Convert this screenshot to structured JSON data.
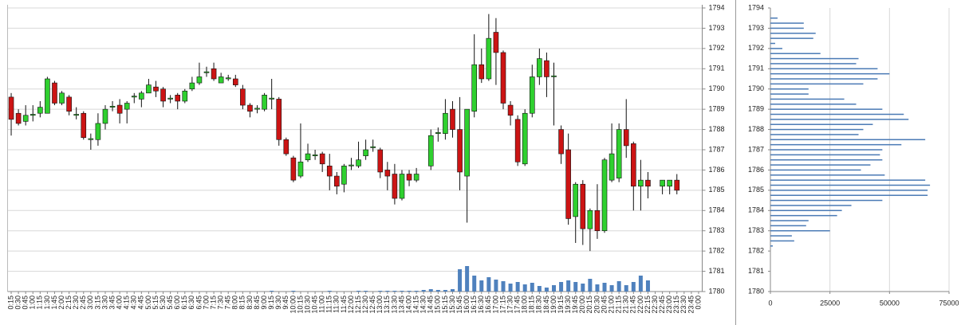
{
  "chart_data": [
    {
      "type": "candlestick",
      "categories": [
        "0:15",
        "0:30",
        "0:45",
        "1:00",
        "1:15",
        "1:30",
        "1:45",
        "2:00",
        "2:15",
        "2:30",
        "2:45",
        "3:00",
        "3:15",
        "3:30",
        "3:45",
        "4:00",
        "4:15",
        "4:30",
        "4:45",
        "5:00",
        "5:15",
        "5:30",
        "5:45",
        "6:00",
        "6:15",
        "6:30",
        "6:45",
        "7:00",
        "7:15",
        "7:30",
        "7:45",
        "8:00",
        "8:15",
        "8:30",
        "8:45",
        "9:00",
        "9:15",
        "9:30",
        "9:45",
        "10:00",
        "10:15",
        "10:30",
        "10:45",
        "11:00",
        "11:15",
        "11:30",
        "11:45",
        "12:00",
        "12:15",
        "12:30",
        "12:45",
        "13:00",
        "13:15",
        "13:30",
        "13:45",
        "14:00",
        "14:15",
        "14:30",
        "14:45",
        "15:00",
        "15:15",
        "15:30",
        "15:45",
        "16:00",
        "16:15",
        "16:30",
        "16:45",
        "17:00",
        "17:15",
        "17:30",
        "17:45",
        "18:00",
        "18:15",
        "18:30",
        "18:45",
        "19:00",
        "19:15",
        "19:30",
        "19:45",
        "20:00",
        "20:15",
        "20:30",
        "20:45",
        "21:00",
        "21:15",
        "21:30",
        "21:45",
        "22:00",
        "22:15",
        "22:30",
        "22:45",
        "23:00",
        "23:15",
        "23:30",
        "23:45",
        "0:00"
      ],
      "open": [
        1789.6,
        1788.8,
        1788.4,
        1788.7,
        1788.8,
        1788.8,
        1790.3,
        1789.3,
        1789.6,
        1788.7,
        1788.8,
        1787.5,
        1787.5,
        1788.3,
        1789.1,
        1789.2,
        1789.0,
        1789.6,
        1789.5,
        1789.8,
        1790.1,
        1790.0,
        1789.5,
        1789.7,
        1789.4,
        1790.0,
        1790.3,
        1790.8,
        1791.0,
        1790.3,
        1790.5,
        1790.5,
        1790.0,
        1789.2,
        1789.0,
        1789.0,
        1789.5,
        1789.5,
        1787.5,
        1786.6,
        1785.7,
        1786.5,
        1786.7,
        1786.8,
        1786.2,
        1785.7,
        1785.3,
        1786.2,
        1786.2,
        1786.7,
        1787.1,
        1787.0,
        1786.0,
        1785.8,
        1784.6,
        1785.8,
        1785.5,
        null,
        1786.2,
        1787.8,
        1787.8,
        1789.0,
        1788.0,
        1785.7,
        1788.9,
        1791.2,
        1790.5,
        1792.8,
        1791.8,
        1789.2,
        1788.5,
        1786.3,
        1788.8,
        1790.6,
        1791.4,
        1790.6,
        1788.0,
        1787.0,
        1783.7,
        1785.3,
        1783.1,
        1784.0,
        1783.0,
        1785.5,
        1785.6,
        1788.0,
        1787.3,
        1785.2,
        1785.5,
        null,
        1785.2,
        1785.2,
        1785.5,
        null,
        null,
        null
      ],
      "high": [
        1789.8,
        1789.0,
        1789.2,
        1789.2,
        1789.4,
        1790.6,
        1790.4,
        1789.9,
        1789.7,
        1789.1,
        1788.9,
        1787.8,
        1788.8,
        1789.2,
        1789.4,
        1789.5,
        1789.4,
        1789.8,
        1789.9,
        1790.5,
        1790.4,
        1790.1,
        1789.7,
        1789.8,
        1790.0,
        1790.6,
        1791.3,
        1791.1,
        1791.3,
        1790.8,
        1790.7,
        1790.7,
        1790.2,
        1789.3,
        1789.2,
        1789.8,
        1790.5,
        1789.6,
        1787.6,
        1786.7,
        1788.3,
        1787.3,
        1787.0,
        1786.9,
        1786.8,
        1785.9,
        1786.3,
        1786.6,
        1787.4,
        1787.5,
        1787.5,
        1787.1,
        1786.4,
        1786.3,
        1786.0,
        1786.0,
        1786.1,
        null,
        1788.0,
        1788.1,
        1789.5,
        1789.4,
        1789.6,
        1789.0,
        1792.7,
        1792.0,
        1793.7,
        1793.5,
        1791.9,
        1789.4,
        1788.7,
        1789.0,
        1791.2,
        1792.0,
        1791.8,
        1791.3,
        1788.2,
        1787.8,
        1785.4,
        1785.5,
        1784.1,
        1785.3,
        1786.6,
        1788.3,
        1788.3,
        1789.5,
        1787.4,
        1786.5,
        1785.9,
        null,
        1785.5,
        1785.5,
        1785.8,
        null,
        null,
        null
      ],
      "low": [
        1787.7,
        1788.2,
        1788.2,
        1788.4,
        1788.6,
        1788.8,
        1789.2,
        1789.2,
        1788.7,
        1788.5,
        1787.5,
        1787.0,
        1787.2,
        1788.0,
        1788.9,
        1788.3,
        1788.3,
        1789.3,
        1789.1,
        1789.8,
        1789.6,
        1789.1,
        1789.3,
        1789.0,
        1789.3,
        1789.9,
        1790.2,
        1790.6,
        1790.4,
        1790.3,
        1790.4,
        1790.1,
        1789.0,
        1788.6,
        1788.8,
        1788.9,
        1789.0,
        1787.2,
        1786.7,
        1785.4,
        1785.6,
        1786.4,
        1786.5,
        1785.9,
        1785.0,
        1784.8,
        1784.9,
        1786.0,
        1786.1,
        1786.5,
        1786.9,
        1785.6,
        1785.0,
        1784.3,
        1784.5,
        1785.2,
        1785.4,
        null,
        1786.0,
        1787.4,
        1787.5,
        1787.6,
        1785.0,
        1783.4,
        1788.6,
        1790.3,
        1790.4,
        1790.2,
        1789.0,
        1788.2,
        1786.2,
        1786.2,
        1788.6,
        1790.2,
        1789.6,
        1788.2,
        1786.3,
        1783.3,
        1782.4,
        1782.3,
        1782.0,
        1782.6,
        1782.9,
        1785.4,
        1785.4,
        1786.6,
        1784.0,
        1784.0,
        1784.6,
        null,
        1784.8,
        1784.8,
        1784.8,
        null,
        null,
        null
      ],
      "close": [
        1788.5,
        1788.3,
        1788.7,
        1788.75,
        1789.1,
        1790.5,
        1789.3,
        1789.8,
        1788.9,
        1788.75,
        1787.6,
        1787.55,
        1788.3,
        1789.0,
        1789.15,
        1788.8,
        1789.3,
        1789.65,
        1789.8,
        1790.2,
        1789.9,
        1789.4,
        1789.55,
        1789.4,
        1789.9,
        1790.3,
        1790.6,
        1790.85,
        1790.5,
        1790.6,
        1790.55,
        1790.2,
        1789.2,
        1788.9,
        1789.05,
        1789.7,
        1789.55,
        1787.5,
        1786.8,
        1785.5,
        1786.4,
        1786.8,
        1786.75,
        1786.3,
        1785.7,
        1785.2,
        1786.2,
        1786.25,
        1786.5,
        1787.0,
        1787.15,
        1785.9,
        1785.7,
        1784.6,
        1785.8,
        1785.5,
        1785.8,
        null,
        1787.7,
        1787.85,
        1788.8,
        1788.0,
        1785.9,
        1789.0,
        1791.2,
        1790.5,
        1792.5,
        1791.8,
        1789.3,
        1788.7,
        1786.4,
        1788.8,
        1790.6,
        1791.5,
        1790.6,
        1790.65,
        1786.8,
        1783.6,
        1785.3,
        1783.1,
        1784.0,
        1783.0,
        1786.5,
        1786.8,
        1788.0,
        1787.2,
        1785.2,
        1785.5,
        1785.2,
        null,
        1785.5,
        1785.5,
        1785.0,
        null,
        null,
        null
      ],
      "volume": [
        0,
        0,
        0,
        0,
        0,
        0,
        0,
        0,
        0,
        0,
        0,
        0,
        0,
        0,
        0,
        0,
        0,
        0,
        0,
        0,
        0,
        0,
        0,
        0,
        0,
        0,
        0,
        0,
        0,
        0,
        0,
        0,
        0,
        0,
        0,
        0,
        1,
        0,
        0,
        1,
        0,
        0,
        0,
        0,
        1,
        0,
        0,
        0,
        1,
        1,
        0,
        1,
        1,
        1,
        1,
        1,
        1,
        2,
        3,
        2,
        2,
        3,
        28,
        32,
        20,
        14,
        18,
        15,
        13,
        10,
        12,
        9,
        11,
        7,
        5,
        8,
        12,
        14,
        12,
        10,
        16,
        9,
        11,
        8,
        13,
        8,
        12,
        20,
        14,
        0,
        0,
        0,
        0,
        0,
        0,
        0
      ],
      "up_color": "#2fd02f",
      "down_color": "#cc1414",
      "volume_color": "#4f81bd",
      "ylim": [
        1780,
        1794
      ],
      "yticks": [
        1780,
        1781,
        1782,
        1783,
        1784,
        1785,
        1786,
        1787,
        1788,
        1789,
        1790,
        1791,
        1792,
        1793,
        1794
      ],
      "grid": true
    },
    {
      "type": "hbar",
      "y": [
        1782.25,
        1782.5,
        1782.75,
        1783.0,
        1783.25,
        1783.5,
        1783.75,
        1784.0,
        1784.25,
        1784.5,
        1784.75,
        1785.0,
        1785.25,
        1785.5,
        1785.75,
        1786.0,
        1786.25,
        1786.5,
        1786.75,
        1787.0,
        1787.25,
        1787.5,
        1787.75,
        1788.0,
        1788.25,
        1788.5,
        1788.75,
        1789.0,
        1789.25,
        1789.5,
        1789.75,
        1790.0,
        1790.25,
        1790.5,
        1790.75,
        1791.0,
        1791.25,
        1791.5,
        1791.75,
        1792.0,
        1792.25,
        1792.5,
        1792.75,
        1793.0,
        1793.25,
        1793.5
      ],
      "values": [
        1000,
        10000,
        9000,
        25000,
        15000,
        16000,
        28000,
        30000,
        34000,
        47000,
        66000,
        66000,
        67000,
        65000,
        48000,
        38000,
        42000,
        47000,
        46000,
        47000,
        55000,
        65000,
        37000,
        39000,
        43000,
        58000,
        56000,
        47000,
        36000,
        31000,
        16000,
        16000,
        39000,
        45000,
        50000,
        45000,
        36000,
        37000,
        21000,
        5000,
        2000,
        18000,
        19000,
        14000,
        14000,
        3000
      ],
      "color": "#4a7ab5",
      "xlim": [
        0,
        75000
      ],
      "xticks": [
        0,
        25000,
        50000,
        75000
      ],
      "ylim": [
        1780,
        1794
      ],
      "yticks": [
        1780,
        1781,
        1782,
        1783,
        1784,
        1785,
        1786,
        1787,
        1788,
        1789,
        1790,
        1791,
        1792,
        1793,
        1794
      ],
      "grid": true
    }
  ]
}
